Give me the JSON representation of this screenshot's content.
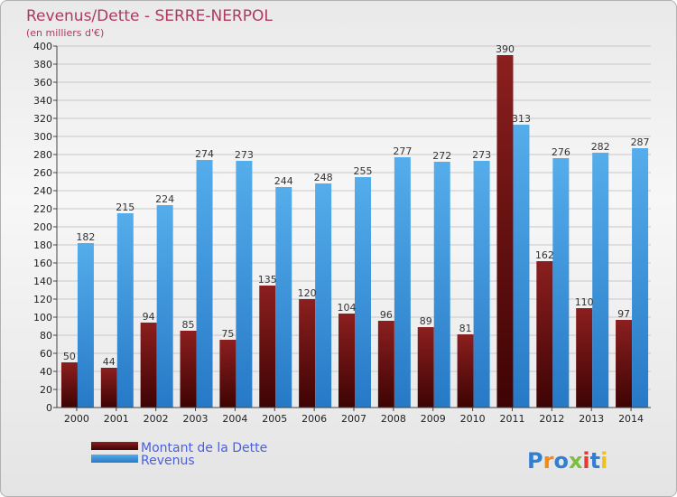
{
  "chart_data": {
    "type": "bar",
    "title": "Revenus/Dette - SERRE-NERPOL",
    "subtitle": "(en milliers d'€)",
    "categories": [
      "2000",
      "2001",
      "2002",
      "2003",
      "2004",
      "2005",
      "2006",
      "2007",
      "2008",
      "2009",
      "2010",
      "2011",
      "2012",
      "2013",
      "2014"
    ],
    "series": [
      {
        "name": "Montant de la Dette",
        "color": "#7a1010",
        "values": [
          50,
          44,
          94,
          85,
          75,
          135,
          120,
          104,
          96,
          89,
          81,
          390,
          162,
          110,
          97
        ]
      },
      {
        "name": "Revenus",
        "color": "#3d9de2",
        "values": [
          182,
          215,
          224,
          274,
          273,
          244,
          248,
          255,
          277,
          272,
          273,
          313,
          276,
          282,
          287
        ]
      }
    ],
    "ylim": [
      0,
      400
    ],
    "ytick_step": 20,
    "xlabel": "",
    "ylabel": "",
    "grid": true,
    "legend": "bottom-left"
  },
  "branding": {
    "logo_letters": [
      "P",
      "r",
      "o",
      "x",
      "i",
      "t",
      "i"
    ],
    "logo_colors": [
      "#2f7fd4",
      "#f08a1c",
      "#2f7fd4",
      "#7fbf3f",
      "#e53a2f",
      "#2f7fd4",
      "#f0c01c"
    ]
  }
}
